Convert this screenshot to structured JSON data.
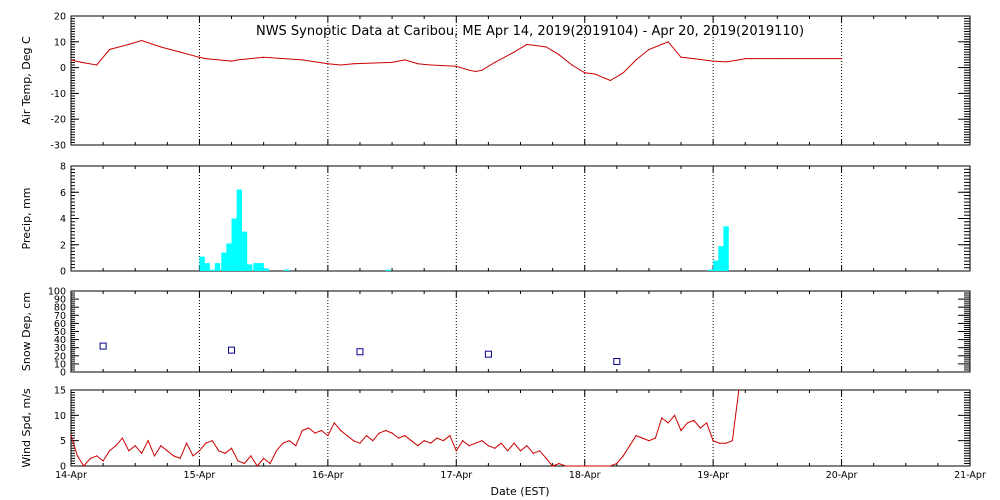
{
  "chart_data": [
    {
      "type": "line",
      "title": "NWS Synoptic Data at Caribou, ME   Apr 14, 2019(2019104) - Apr 20, 2019(2019110)",
      "ylabel": "Air Temp, Deg C",
      "ylim": [
        -30,
        20
      ],
      "yticks": [
        -30,
        -20,
        -10,
        0,
        10,
        20
      ],
      "color": "#cc0000",
      "x_unit": "days from 14-Apr 00:00 EST",
      "x": [
        0,
        0.08,
        0.2,
        0.3,
        0.45,
        0.55,
        0.7,
        0.85,
        1.0,
        1.05,
        1.15,
        1.25,
        1.3,
        1.5,
        1.8,
        2.0,
        2.1,
        2.2,
        2.5,
        2.6,
        2.7,
        2.8,
        3.0,
        3.1,
        3.15,
        3.2,
        3.3,
        3.45,
        3.55,
        3.7,
        3.8,
        3.9,
        4.0,
        4.08,
        4.15,
        4.2,
        4.3,
        4.4,
        4.5,
        4.6,
        4.65,
        4.75,
        4.85,
        5.0,
        5.1,
        5.2,
        5.25,
        5.3,
        5.5,
        6.0
      ],
      "values": [
        3,
        2,
        1,
        7,
        9,
        10.5,
        8,
        6,
        4,
        3.5,
        3,
        2.5,
        3,
        4,
        3,
        1.5,
        1,
        1.5,
        2,
        3,
        1.5,
        1,
        0.5,
        -1,
        -1.5,
        -1,
        2,
        6,
        9,
        8,
        5,
        1,
        -2,
        -2.5,
        -4,
        -5,
        -2,
        3,
        7,
        9,
        10,
        4,
        3.5,
        2.5,
        2.2,
        3,
        3.5,
        3.5,
        3.5,
        3.5
      ]
    },
    {
      "type": "bar",
      "ylabel": "Precip, mm",
      "ylim": [
        0,
        8
      ],
      "yticks": [
        0,
        2,
        4,
        6,
        8
      ],
      "color": "#00ffff",
      "bar_width_days": 0.0417,
      "x": [
        0.0,
        0.04,
        0.08,
        0.12,
        0.17,
        0.21,
        0.25,
        0.29,
        0.33,
        0.37,
        0.42,
        0.46,
        0.5,
        0.66,
        1.45,
        3.96,
        4.0,
        4.04,
        4.08,
        4.12
      ],
      "x_offset_days": 1.0,
      "values": [
        1.1,
        0.6,
        0.1,
        0.6,
        1.4,
        2.1,
        4.0,
        6.2,
        3.0,
        0.5,
        0.6,
        0.6,
        0.2,
        0.1,
        0.1,
        0.1,
        0.8,
        1.9,
        3.4,
        0
      ]
    },
    {
      "type": "scatter",
      "ylabel": "Snow Dep, cm",
      "ylim": [
        0,
        100
      ],
      "yticks": [
        0,
        10,
        20,
        30,
        40,
        50,
        60,
        70,
        80,
        90,
        100
      ],
      "color": "#00008b",
      "x": [
        0.25,
        1.25,
        2.25,
        3.25,
        4.25
      ],
      "values": [
        32,
        27,
        25,
        22,
        13
      ]
    },
    {
      "type": "line",
      "ylabel": "Wind Spd, m/s",
      "ylim": [
        0,
        15
      ],
      "yticks": [
        0,
        5,
        10,
        15
      ],
      "color": "#cc0000",
      "xlabel": "Date (EST)",
      "x": [
        0,
        0.05,
        0.1,
        0.15,
        0.2,
        0.25,
        0.3,
        0.35,
        0.4,
        0.45,
        0.5,
        0.55,
        0.6,
        0.65,
        0.7,
        0.75,
        0.8,
        0.85,
        0.9,
        0.95,
        1.0,
        1.05,
        1.1,
        1.15,
        1.2,
        1.25,
        1.3,
        1.35,
        1.4,
        1.45,
        1.5,
        1.55,
        1.6,
        1.65,
        1.7,
        1.75,
        1.8,
        1.85,
        1.9,
        1.95,
        2.0,
        2.05,
        2.1,
        2.15,
        2.2,
        2.25,
        2.3,
        2.35,
        2.4,
        2.45,
        2.5,
        2.55,
        2.6,
        2.65,
        2.7,
        2.75,
        2.8,
        2.85,
        2.9,
        2.95,
        3.0,
        3.05,
        3.1,
        3.15,
        3.2,
        3.25,
        3.3,
        3.35,
        3.4,
        3.45,
        3.5,
        3.55,
        3.6,
        3.65,
        3.7,
        3.75,
        3.8,
        3.85,
        3.9,
        3.95,
        4.0,
        4.05,
        4.1,
        4.15,
        4.2,
        4.25,
        4.3,
        4.35,
        4.4,
        4.45,
        4.5,
        4.55,
        4.6,
        4.65,
        4.7,
        4.75,
        4.8,
        4.85,
        4.9,
        4.95,
        5.0,
        5.05,
        5.1,
        5.15,
        5.2
      ],
      "values": [
        6,
        2,
        0,
        1.5,
        2,
        1,
        3,
        4,
        5.5,
        3,
        4,
        2.5,
        5,
        2,
        4,
        3,
        2,
        1.5,
        4.5,
        2,
        3,
        4.5,
        5,
        3,
        2.5,
        3.5,
        1,
        0.5,
        2,
        0,
        1.5,
        0.5,
        3,
        4.5,
        5,
        4,
        7,
        7.5,
        6.5,
        7,
        6,
        8.5,
        7,
        6,
        5,
        4.5,
        6,
        5,
        6.5,
        7,
        6.5,
        5.5,
        6,
        5,
        4,
        5,
        4.5,
        5.5,
        5,
        6,
        3,
        5,
        4,
        4.5,
        5,
        4,
        3.5,
        4.5,
        3,
        4.5,
        3,
        4,
        2.5,
        3,
        1.5,
        0,
        0.5,
        0,
        0,
        0,
        0,
        0,
        0,
        0,
        0,
        0.5,
        2,
        4,
        6,
        5.5,
        5,
        5.5,
        9.5,
        8.5,
        10,
        7,
        8.5,
        9,
        7.5,
        8.5,
        5,
        4.5,
        4.5,
        5,
        15
      ]
    }
  ],
  "x_axis": {
    "ticks": [
      "14-Apr",
      "15-Apr",
      "16-Apr",
      "17-Apr",
      "18-Apr",
      "19-Apr",
      "20-Apr",
      "21-Apr"
    ],
    "range_days": [
      0,
      7
    ]
  }
}
